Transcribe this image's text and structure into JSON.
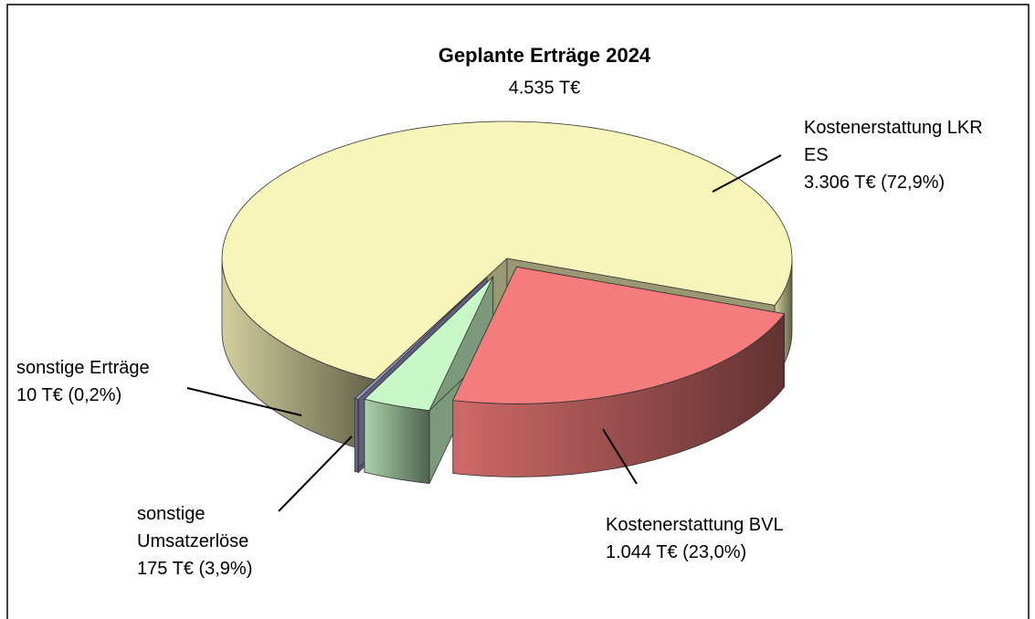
{
  "chart_data": {
    "type": "pie",
    "title": "Geplante Erträge 2024",
    "subtitle": "4.535 T€",
    "categories": [
      "Kostenerstattung LKR ES",
      "Kostenerstattung BVL",
      "sonstige Umsatzerlöse",
      "sonstige Erträge"
    ],
    "values": [
      3306,
      1044,
      175,
      10
    ],
    "value_labels": [
      "3.306 T€ (72,9%)",
      "1.044 T€ (23,0%)",
      "175 T€ (3,9%)",
      "10 T€ (0,2%)"
    ],
    "colors": [
      "#f7f5b9",
      "#f47c7c",
      "#c8f7c8",
      "#9a9acb"
    ]
  }
}
